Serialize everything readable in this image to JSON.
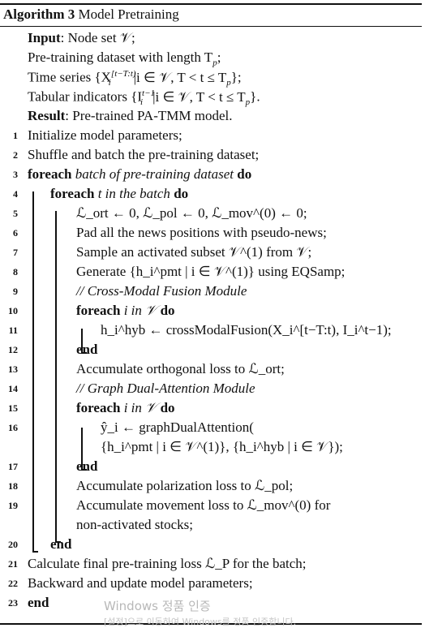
{
  "algorithm": {
    "label": "Algorithm 3",
    "name": "Model Pretraining"
  },
  "header": {
    "input_kw": "Input",
    "input_text": ": Node set 𝒱;",
    "input_line2": "Pre-training dataset with length T",
    "input_line2_sub": "p",
    "input_line2_end": ";",
    "input_line3": "Time series {X",
    "input_line3_sup": "[t−T:t)",
    "input_line3_sub": "i",
    "input_line3_end": "|i ∈ 𝒱, T < t ≤ T",
    "input_line3_sub2": "p",
    "input_line3_close": "};",
    "input_line4": "Tabular indicators {I",
    "input_line4_sup": "t−1",
    "input_line4_sub": "i",
    "input_line4_end": "|i ∈ 𝒱, T < t ≤ T",
    "input_line4_sub2": "p",
    "input_line4_close": "}.",
    "result_kw": "Result",
    "result_text": ": Pre-trained PA-TMM model."
  },
  "lines": [
    {
      "n": "1",
      "text": "Initialize model parameters;"
    },
    {
      "n": "2",
      "text": "Shuffle and batch the pre-training dataset;"
    },
    {
      "n": "3",
      "kw": "foreach",
      "it": "batch of pre-training dataset",
      "kw2": "do"
    },
    {
      "n": "4",
      "kw": "foreach",
      "it": "t in the batch",
      "kw2": "do"
    },
    {
      "n": "5",
      "text": "ℒ_ort ← 0, ℒ_pol ← 0, ℒ_mov^(0) ← 0;"
    },
    {
      "n": "6",
      "text": "Pad all the news positions with pseudo-news;"
    },
    {
      "n": "7",
      "text": "Sample an activated subset 𝒱^(1) from 𝒱;"
    },
    {
      "n": "8",
      "text": "Generate {h_i^pmt | i ∈ 𝒱^(1)} using EQSamp;"
    },
    {
      "n": "9",
      "text": "// Cross-Modal Fusion Module"
    },
    {
      "n": "10",
      "kw": "foreach",
      "it": "i in 𝒱",
      "kw2": "do"
    },
    {
      "n": "11",
      "text": "h_i^hyb ← crossModalFusion(X_i^[t−T:t), I_i^t−1);"
    },
    {
      "n": "12",
      "kw": "end"
    },
    {
      "n": "13",
      "text": "Accumulate orthogonal loss to ℒ_ort;"
    },
    {
      "n": "14",
      "text": "// Graph Dual-Attention Module"
    },
    {
      "n": "15",
      "kw": "foreach",
      "it": "i in 𝒱",
      "kw2": "do"
    },
    {
      "n": "16",
      "text": "ŷ_i ← graphDualAttention("
    },
    {
      "n": "",
      "text": "{h_i^pmt | i ∈ 𝒱^(1)}, {h_i^hyb | i ∈ 𝒱});"
    },
    {
      "n": "17",
      "kw": "end"
    },
    {
      "n": "18",
      "text": "Accumulate polarization loss to ℒ_pol;"
    },
    {
      "n": "19",
      "text": "Accumulate movement loss to ℒ_mov^(0) for"
    },
    {
      "n": "",
      "text": "non-activated stocks;"
    },
    {
      "n": "20",
      "kw": "end"
    },
    {
      "n": "21",
      "text": "Calculate final pre-training loss ℒ_P for the batch;"
    },
    {
      "n": "22",
      "text": "Backward and update model parameters;"
    },
    {
      "n": "23",
      "kw": "end"
    }
  ],
  "watermark": {
    "line1": "Windows 정품 인증",
    "line2": "[설정]으로 이동하여 Windows를 정품 인증합니다."
  }
}
